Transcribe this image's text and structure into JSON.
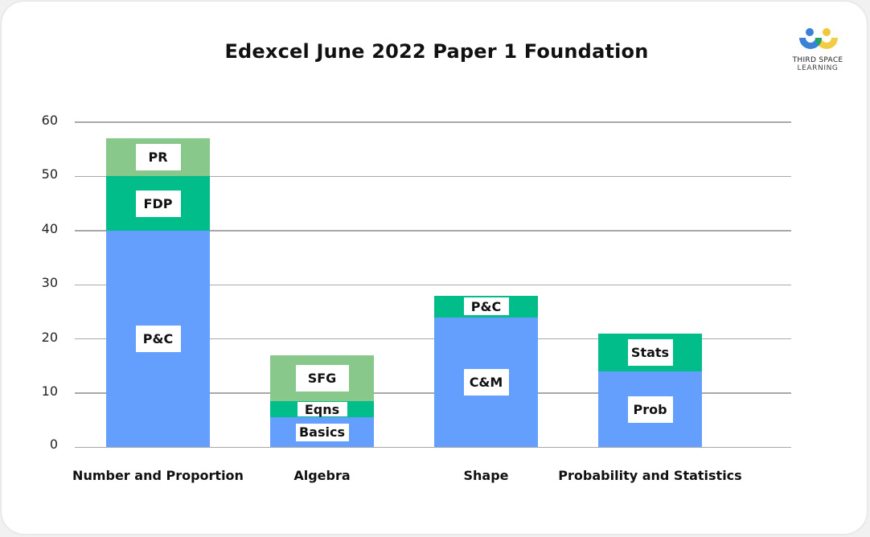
{
  "title": "Edexcel June 2022 Paper 1 Foundation",
  "logo": {
    "line1": "THIRD SPACE",
    "line2": "LEARNING"
  },
  "colors": {
    "blue": "#659ffd",
    "dark_green": "#00bd8a",
    "light_green": "#88c88a",
    "grid": "#a8a8a8"
  },
  "chart_data": {
    "type": "bar",
    "stacked": true,
    "title": "Edexcel June 2022 Paper 1 Foundation",
    "xlabel": "",
    "ylabel": "",
    "ylim": [
      0,
      60
    ],
    "yticks": [
      0,
      10,
      20,
      30,
      40,
      50,
      60
    ],
    "grid": true,
    "categories": [
      "Number and Proportion",
      "Algebra",
      "Shape",
      "Probability and Statistics"
    ],
    "bars": [
      {
        "category": "Number and Proportion",
        "segments": [
          {
            "label": "P&C",
            "value": 40,
            "color": "#659ffd"
          },
          {
            "label": "FDP",
            "value": 10,
            "color": "#00bd8a"
          },
          {
            "label": "PR",
            "value": 7,
            "color": "#88c88a"
          }
        ]
      },
      {
        "category": "Algebra",
        "segments": [
          {
            "label": "Basics",
            "value": 5.5,
            "color": "#659ffd"
          },
          {
            "label": "Eqns",
            "value": 3,
            "color": "#00bd8a"
          },
          {
            "label": "SFG",
            "value": 8.5,
            "color": "#88c88a"
          }
        ]
      },
      {
        "category": "Shape",
        "segments": [
          {
            "label": "C&M",
            "value": 24,
            "color": "#659ffd"
          },
          {
            "label": "P&C",
            "value": 4,
            "color": "#00bd8a"
          }
        ]
      },
      {
        "category": "Probability and Statistics",
        "segments": [
          {
            "label": "Prob",
            "value": 14,
            "color": "#659ffd"
          },
          {
            "label": "Stats",
            "value": 7,
            "color": "#00bd8a"
          }
        ]
      }
    ]
  }
}
